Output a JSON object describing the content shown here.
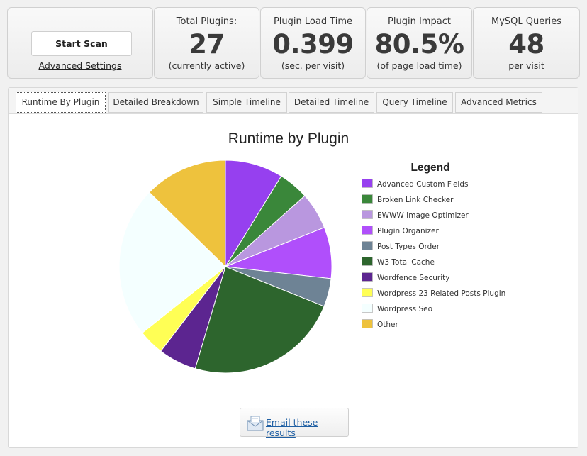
{
  "scan": {
    "start_label": "Start Scan",
    "advanced_label": "Advanced Settings"
  },
  "stats": {
    "total_plugins": {
      "label": "Total Plugins:",
      "value": "27",
      "sub": "(currently active)"
    },
    "load_time": {
      "label": "Plugin Load Time",
      "value": "0.399",
      "sub": "(sec. per visit)"
    },
    "impact": {
      "label": "Plugin Impact",
      "value": "80.5%",
      "sub": "(of page load time)"
    },
    "mysql": {
      "label": "MySQL Queries",
      "value": "48",
      "sub": "per visit"
    }
  },
  "tabs": [
    {
      "label": "Runtime By Plugin",
      "active": true
    },
    {
      "label": "Detailed Breakdown",
      "active": false
    },
    {
      "label": "Simple Timeline",
      "active": false
    },
    {
      "label": "Detailed Timeline",
      "active": false
    },
    {
      "label": "Query Timeline",
      "active": false
    },
    {
      "label": "Advanced Metrics",
      "active": false
    }
  ],
  "email": {
    "label": "Email these results",
    "icon": "envelope-icon"
  },
  "chart_data": {
    "type": "pie",
    "title": "Runtime by Plugin",
    "legend_title": "Legend",
    "legend_position": "right",
    "slices": [
      {
        "label": "Advanced Custom Fields",
        "value": 8.8,
        "color": "#9640ef"
      },
      {
        "label": "Broken Link Checker",
        "value": 4.6,
        "color": "#3a873a"
      },
      {
        "label": "EWWW Image Optimizer",
        "value": 5.6,
        "color": "#b997df"
      },
      {
        "label": "Plugin Organizer",
        "value": 7.8,
        "color": "#b04ffb"
      },
      {
        "label": "Post Types Order",
        "value": 4.3,
        "color": "#6e8395"
      },
      {
        "label": "W3 Total Cache",
        "value": 23.5,
        "color": "#2d652d"
      },
      {
        "label": "Wordfence Security",
        "value": 5.8,
        "color": "#5c2590"
      },
      {
        "label": "Wordpress 23 Related Posts Plugin",
        "value": 3.9,
        "color": "#ffff55"
      },
      {
        "label": "Wordpress Seo",
        "value": 23.0,
        "color": "#f4ffff"
      },
      {
        "label": "Other",
        "value": 12.7,
        "color": "#eec23d"
      }
    ]
  }
}
